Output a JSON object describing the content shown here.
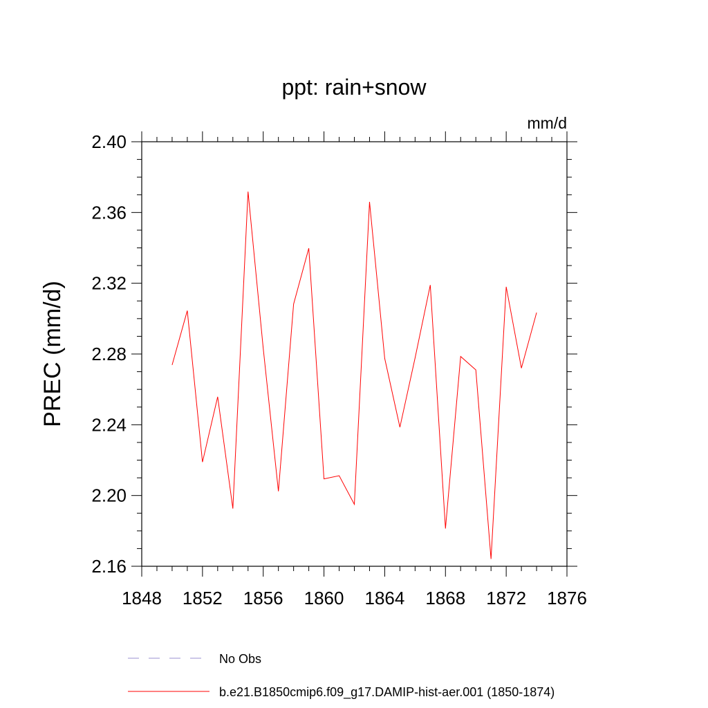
{
  "chart_data": {
    "type": "line",
    "title": "ppt: rain+snow",
    "units_label": "mm/d",
    "xlabel": "",
    "ylabel": "PREC  (mm/d)",
    "xlim": [
      1848,
      1876
    ],
    "ylim": [
      2.16,
      2.4
    ],
    "x_ticks": [
      1848,
      1852,
      1856,
      1860,
      1864,
      1868,
      1872,
      1876
    ],
    "x_tick_labels": [
      "1848",
      "1852",
      "1856",
      "1860",
      "1864",
      "1868",
      "1872",
      "1876"
    ],
    "y_ticks": [
      2.16,
      2.2,
      2.24,
      2.28,
      2.32,
      2.36,
      2.4
    ],
    "y_tick_labels": [
      "2.16",
      "2.20",
      "2.24",
      "2.28",
      "2.32",
      "2.36",
      "2.40"
    ],
    "grid": false,
    "legend_position": "bottom",
    "x": [
      1850,
      1851,
      1852,
      1853,
      1854,
      1855,
      1856,
      1857,
      1858,
      1859,
      1860,
      1861,
      1862,
      1863,
      1864,
      1865,
      1866,
      1867,
      1868,
      1869,
      1870,
      1871,
      1872,
      1873,
      1874
    ],
    "series": [
      {
        "name": "b.e21.B1850cmip6.f09_g17.DAMIP-hist-aer.001 (1850-1874)",
        "color": "#ff0000",
        "style": "solid",
        "values": [
          2.2738,
          2.3045,
          2.2189,
          2.2558,
          2.1926,
          2.3718,
          2.2832,
          2.2024,
          2.3082,
          2.3398,
          2.2094,
          2.2112,
          2.195,
          2.366,
          2.2775,
          2.2386,
          2.2778,
          2.319,
          2.1813,
          2.2786,
          2.271,
          2.1641,
          2.318,
          2.272,
          2.3034
        ]
      }
    ],
    "legend": [
      {
        "label": "No Obs",
        "color": "#9a8fd0",
        "style": "dashed"
      },
      {
        "label": "b.e21.B1850cmip6.f09_g17.DAMIP-hist-aer.001 (1850-1874)",
        "color": "#ff0000",
        "style": "solid"
      }
    ]
  }
}
